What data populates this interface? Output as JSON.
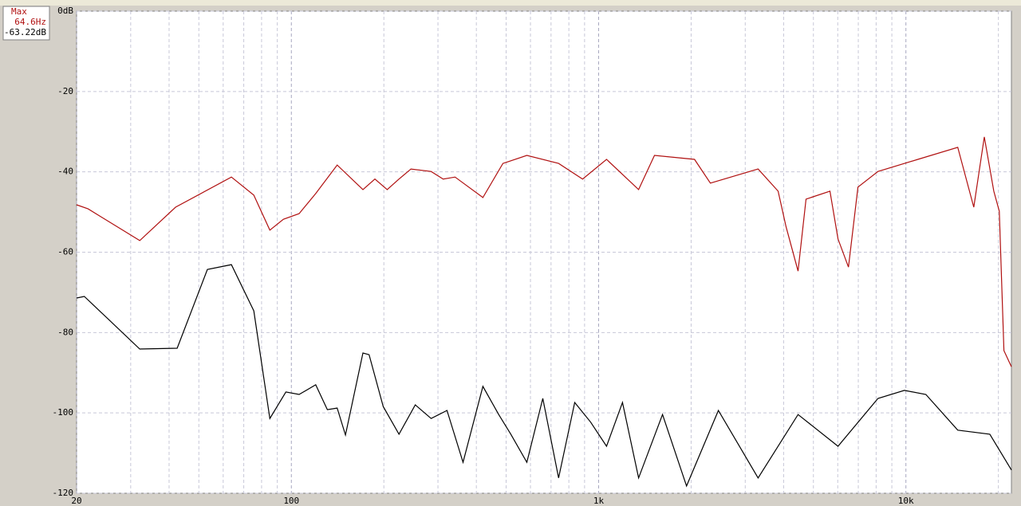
{
  "chart_data": {
    "type": "line",
    "annotation": {
      "title": "Max",
      "freq": "64.6Hz",
      "level": "-63.22dB"
    },
    "xlog": true,
    "grid": true,
    "xlim": [
      20,
      22050
    ],
    "xticks": [
      20,
      100,
      {
        "value": 1000,
        "label": "1k"
      },
      {
        "value": 10000,
        "label": "10k"
      }
    ],
    "xminor": [
      30,
      40,
      50,
      60,
      70,
      80,
      90,
      200,
      300,
      400,
      500,
      600,
      700,
      800,
      900,
      2000,
      3000,
      4000,
      5000,
      6000,
      7000,
      8000,
      9000,
      20000
    ],
    "ylim": [
      -120,
      0
    ],
    "yticks": [
      {
        "value": 0,
        "label": "0dB"
      },
      -20,
      -40,
      -60,
      -80,
      -100,
      -120
    ],
    "series": [
      {
        "color": "#b01010",
        "x": [
          20,
          21.8,
          32.1,
          42.0,
          63.8,
          75.5,
          85.1,
          94.2,
          106,
          120,
          141,
          171,
          187,
          205,
          224,
          245,
          285,
          312,
          341,
          420,
          488,
          584,
          741,
          887,
          1061,
          1349,
          1520,
          2051,
          2311,
          3304,
          3838,
          4074,
          4457,
          4732,
          5662,
          6012,
          6501,
          6982,
          8110,
          10940,
          14750,
          16630,
          17990,
          19320,
          20140,
          20850,
          22050
        ],
        "values": [
          -48.2,
          -49.2,
          -57.1,
          -48.8,
          -41.3,
          -45.8,
          -54.5,
          -51.8,
          -50.4,
          -45.4,
          -38.3,
          -44.4,
          -41.8,
          -44.4,
          -41.8,
          -39.3,
          -39.9,
          -41.8,
          -41.3,
          -46.4,
          -37.9,
          -35.9,
          -37.9,
          -41.8,
          -36.9,
          -44.4,
          -35.9,
          -36.9,
          -42.8,
          -39.3,
          -44.8,
          -53.7,
          -64.7,
          -46.8,
          -44.8,
          -56.7,
          -63.7,
          -43.8,
          -39.9,
          -36.9,
          -33.9,
          -48.8,
          -31.3,
          -44.8,
          -49.8,
          -84.5,
          -88.5
        ]
      },
      {
        "color": "#000000",
        "x": [
          20,
          21.2,
          32.1,
          42.5,
          53.3,
          63.8,
          75.5,
          85.1,
          96,
          106,
          120,
          131,
          141,
          150,
          171,
          179,
          199,
          224,
          253,
          285,
          321,
          362,
          420,
          473,
          518,
          584,
          658,
          741,
          836,
          942,
          1061,
          1196,
          1349,
          1614,
          1932,
          2453,
          3304,
          4457,
          6012,
          8110,
          9885,
          11610,
          14750,
          18750,
          22050
        ],
        "values": [
          -71.4,
          -71.0,
          -84.1,
          -83.9,
          -64.3,
          -63.1,
          -74.6,
          -101.4,
          -94.8,
          -95.4,
          -93.0,
          -99.2,
          -98.8,
          -105.5,
          -85.1,
          -85.5,
          -98.4,
          -105.3,
          -98.0,
          -101.4,
          -99.4,
          -112.3,
          -93.4,
          -100.4,
          -105.3,
          -112.3,
          -96.4,
          -116.2,
          -97.4,
          -102.3,
          -108.3,
          -97.4,
          -116.2,
          -100.4,
          -118.2,
          -99.4,
          -116.2,
          -100.4,
          -108.3,
          -96.4,
          -94.4,
          -95.4,
          -104.3,
          -105.3,
          -114.2
        ]
      }
    ]
  }
}
